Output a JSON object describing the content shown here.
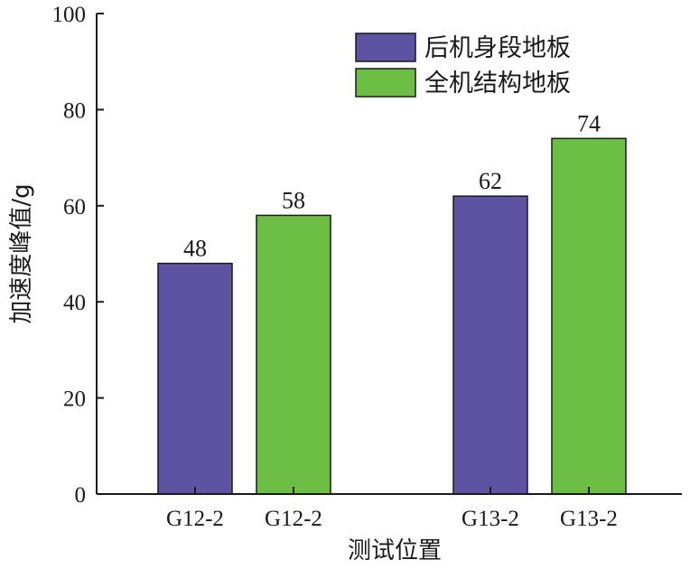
{
  "chart_data": {
    "type": "bar",
    "title": "",
    "xlabel": "测试位置",
    "ylabel": "加速度峰值/g",
    "ylim": [
      0,
      100
    ],
    "yticks": [
      0,
      20,
      40,
      60,
      80,
      100
    ],
    "grid": false,
    "legend_position": "top-right",
    "groups": [
      {
        "bars": [
          {
            "category": "G12-2",
            "series": "后机身段地板",
            "value": 48
          },
          {
            "category": "G12-2",
            "series": "全机结构地板",
            "value": 58
          }
        ]
      },
      {
        "bars": [
          {
            "category": "G13-2",
            "series": "后机身段地板",
            "value": 62
          },
          {
            "category": "G13-2",
            "series": "全机结构地板",
            "value": 74
          }
        ]
      }
    ],
    "series": [
      {
        "name": "后机身段地板",
        "color": "#5e52a2",
        "values": [
          48,
          62
        ]
      },
      {
        "name": "全机结构地板",
        "color": "#6dbe45",
        "values": [
          58,
          74
        ]
      }
    ]
  }
}
